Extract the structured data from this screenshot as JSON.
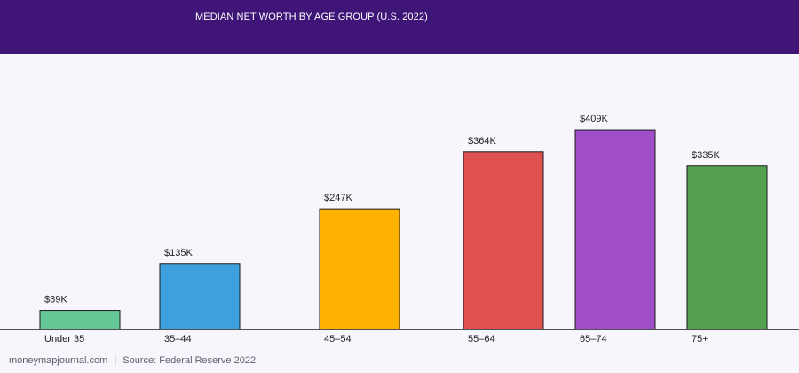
{
  "chart_data": {
    "type": "bar",
    "title": "MEDIAN NET WORTH BY AGE GROUP (U.S. 2022)",
    "categories": [
      "Under 35",
      "35–44",
      "45–54",
      "55–64",
      "65–74",
      "75+"
    ],
    "values": [
      39,
      135,
      247,
      364,
      409,
      335
    ],
    "value_labels": [
      "$39K",
      "$135K",
      "$247K",
      "$364K",
      "$409K",
      "$335K"
    ],
    "unit": "thousand USD",
    "ylim": [
      0,
      480
    ],
    "grid": false,
    "colors": [
      "#66c796",
      "#3ea1dd",
      "#ffb300",
      "#de5150",
      "#a04fc8",
      "#53a151"
    ]
  },
  "footer": {
    "site": "moneymapjournal.com",
    "separator": "|",
    "source": "Source: Federal Reserve 2022"
  }
}
